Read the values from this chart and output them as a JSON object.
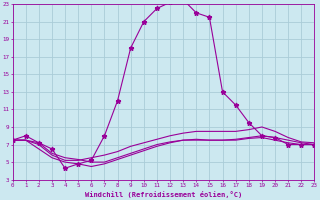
{
  "bg_color": "#cce8f0",
  "grid_color": "#aaccd8",
  "line_color": "#990099",
  "xlabel": "Windchill (Refroidissement éolien,°C)",
  "xlim": [
    0,
    23
  ],
  "ylim": [
    3,
    23
  ],
  "xticks": [
    0,
    1,
    2,
    3,
    4,
    5,
    6,
    7,
    8,
    9,
    10,
    11,
    12,
    13,
    14,
    15,
    16,
    17,
    18,
    19,
    20,
    21,
    22,
    23
  ],
  "yticks": [
    3,
    5,
    7,
    9,
    11,
    13,
    15,
    17,
    19,
    21,
    23
  ],
  "curve1_x": [
    0,
    1,
    2,
    3,
    4,
    5,
    6,
    7,
    8,
    9,
    10,
    11,
    12,
    13,
    14,
    15,
    16,
    17,
    18,
    19,
    20,
    21,
    22,
    23
  ],
  "curve1_y": [
    7.5,
    8.0,
    7.2,
    6.5,
    4.3,
    4.8,
    5.2,
    8.0,
    12.0,
    18.0,
    21.0,
    22.5,
    23.2,
    23.5,
    22.0,
    21.5,
    13.0,
    11.5,
    9.5,
    8.0,
    7.8,
    7.0,
    7.0,
    7.0
  ],
  "curve2_x": [
    0,
    1,
    2,
    3,
    4,
    5,
    6,
    7,
    8,
    9,
    10,
    11,
    12,
    13,
    14,
    15,
    16,
    17,
    18,
    19,
    20,
    21,
    22,
    23
  ],
  "curve2_y": [
    7.5,
    7.5,
    7.0,
    5.8,
    5.2,
    5.2,
    5.5,
    5.8,
    6.2,
    6.8,
    7.2,
    7.6,
    8.0,
    8.3,
    8.5,
    8.5,
    8.5,
    8.5,
    8.7,
    9.0,
    8.5,
    7.8,
    7.3,
    7.2
  ],
  "curve3_x": [
    0,
    1,
    2,
    3,
    4,
    5,
    6,
    7,
    8,
    9,
    10,
    11,
    12,
    13,
    14,
    15,
    16,
    17,
    18,
    19,
    20,
    21,
    22,
    23
  ],
  "curve3_y": [
    7.5,
    7.5,
    6.5,
    5.5,
    5.0,
    4.8,
    4.5,
    4.8,
    5.3,
    5.8,
    6.3,
    6.8,
    7.2,
    7.5,
    7.6,
    7.5,
    7.5,
    7.5,
    7.7,
    7.8,
    7.5,
    7.2,
    7.0,
    7.0
  ],
  "curve4_x": [
    0,
    1,
    2,
    3,
    4,
    5,
    6,
    7,
    8,
    9,
    10,
    11,
    12,
    13,
    14,
    15,
    16,
    17,
    18,
    19,
    20,
    21,
    22,
    23
  ],
  "curve4_y": [
    7.5,
    7.5,
    7.2,
    6.0,
    5.5,
    5.3,
    5.0,
    5.0,
    5.5,
    6.0,
    6.5,
    7.0,
    7.3,
    7.5,
    7.5,
    7.5,
    7.5,
    7.6,
    7.8,
    8.0,
    7.8,
    7.5,
    7.2,
    7.0
  ]
}
